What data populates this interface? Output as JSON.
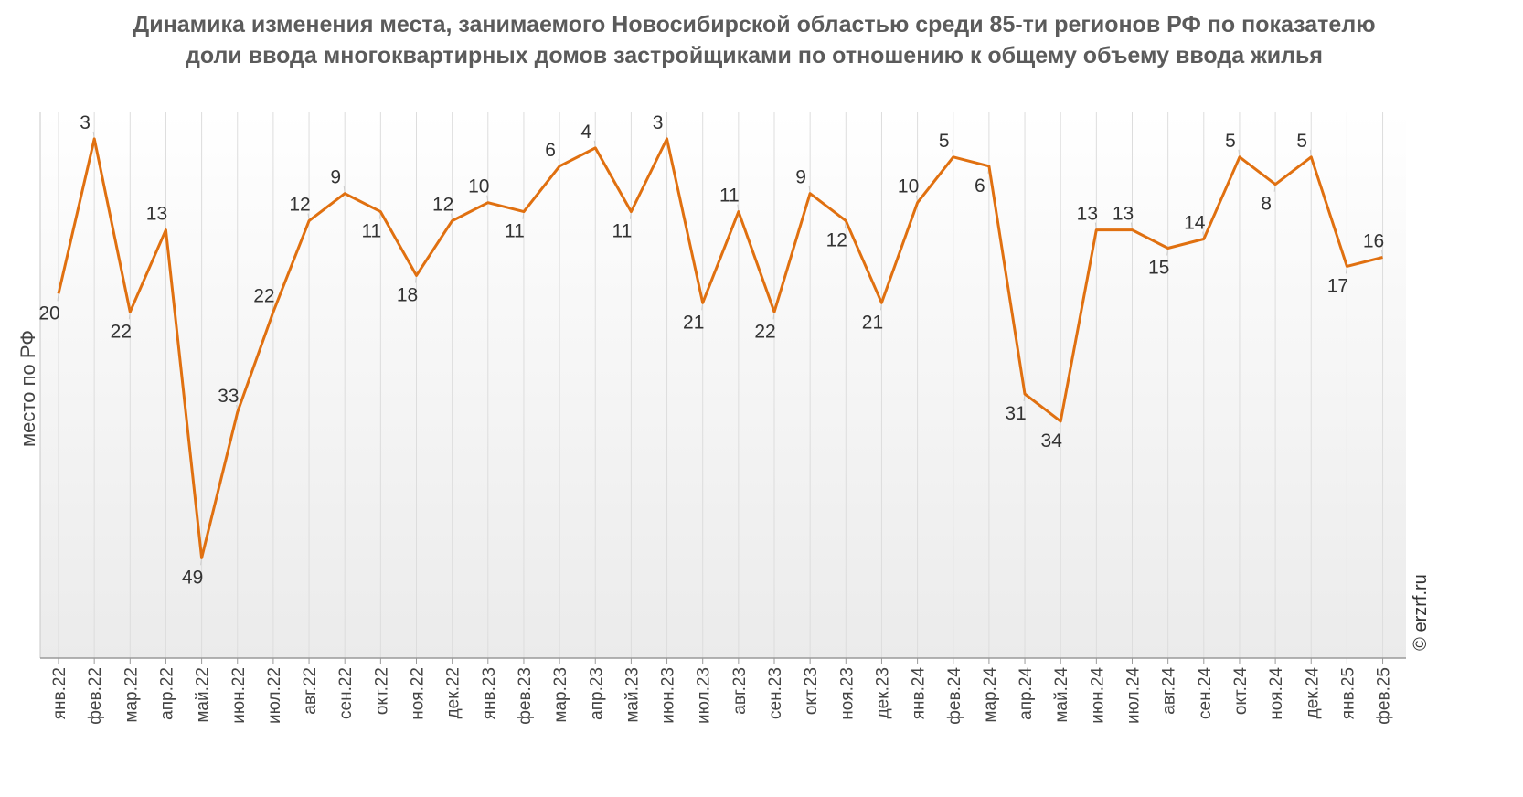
{
  "chart_data": {
    "type": "line",
    "title": "Динамика изменения места, занимаемого Новосибирской областью среди 85-ти регионов РФ по показателю доли ввода многоквартирных домов застройщиками по отношению к общему объему ввода жилья",
    "ylabel": "место по РФ",
    "xlabel": "",
    "ylim": [
      60,
      0
    ],
    "y_inverted": true,
    "grid": "vertical",
    "watermark": "© erzrf.ru",
    "line_color": "#e07010",
    "categories": [
      "янв.22",
      "фев.22",
      "мар.22",
      "апр.22",
      "май.22",
      "июн.22",
      "июл.22",
      "авг.22",
      "сен.22",
      "окт.22",
      "ноя.22",
      "дек.22",
      "янв.23",
      "фев.23",
      "мар.23",
      "апр.23",
      "май.23",
      "июн.23",
      "июл.23",
      "авг.23",
      "сен.23",
      "окт.23",
      "ноя.23",
      "дек.23",
      "янв.24",
      "фев.24",
      "мар.24",
      "апр.24",
      "май.24",
      "июн.24",
      "июл.24",
      "авг.24",
      "сен.24",
      "окт.24",
      "ноя.24",
      "дек.24",
      "янв.25",
      "фев.25"
    ],
    "series": [
      {
        "values": [
          20,
          3,
          22,
          13,
          49,
          33,
          22,
          12,
          9,
          11,
          18,
          12,
          10,
          11,
          6,
          4,
          11,
          3,
          21,
          11,
          22,
          9,
          12,
          21,
          10,
          5,
          6,
          31,
          34,
          13,
          13,
          15,
          14,
          5,
          8,
          5,
          17,
          16
        ]
      }
    ]
  }
}
